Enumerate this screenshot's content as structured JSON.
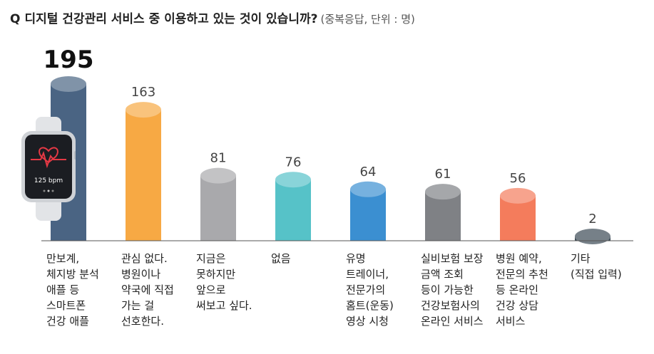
{
  "title": {
    "q_mark": "Q",
    "question": "디지털 건강관리 서비스 중 이용하고 있는 것이 있습니까?",
    "note": "(중복응답, 단위 : 명)"
  },
  "watch": {
    "screen_text": "125 bpm"
  },
  "chart_data": {
    "type": "bar",
    "categories": [
      "만보계,\n체지방 분석\n애플 등\n스마트폰\n건강 애플",
      "관심 없다.\n병원이나\n약국에 직접\n가는 걸\n선호한다.",
      "지금은\n못하지만\n앞으로\n써보고 싶다.",
      "없음",
      "유명\n트레이너,\n전문가의\n홈트(운동)\n영상 시청",
      "실비보험 보장\n금액 조회\n등이 가능한\n건강보험사의\n온라인 서비스",
      "병원 예약,\n전문의 추천\n등 온라인\n건강 상담\n서비스",
      "기타\n(직접 입력)"
    ],
    "values": [
      195,
      163,
      81,
      76,
      64,
      61,
      56,
      2
    ],
    "value_labels": [
      "195",
      "163",
      "81",
      "76",
      "64",
      "61",
      "56",
      "2"
    ],
    "colors": [
      "#4a6483",
      "#f7a944",
      "#a9a9ac",
      "#56c2c8",
      "#3b8fd1",
      "#7f8185",
      "#f47c5c",
      "#3b4a55"
    ],
    "ylim": [
      0,
      195
    ],
    "grid": false,
    "legend": "none"
  }
}
